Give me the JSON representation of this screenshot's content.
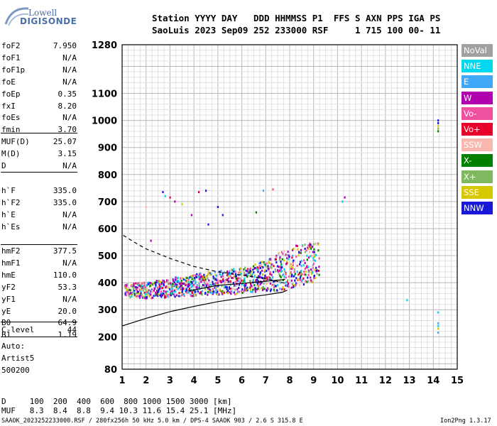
{
  "logo": {
    "line1": "Lowell",
    "line2": "DIGISONDE"
  },
  "header": {
    "line1": "Station YYYY DAY   DDD HHMMSS P1  FFS S AXN PPS IGA PS",
    "line2": "SaoLuis 2023 Sep09 252 233000 RSF     1 715 100 00- 11"
  },
  "params": {
    "g1": [
      [
        "foF2",
        "7.950"
      ],
      [
        "foF1",
        "N/A"
      ],
      [
        "foF1p",
        "N/A"
      ],
      [
        "foE",
        "N/A"
      ],
      [
        "foEp",
        "0.35"
      ],
      [
        "fxI",
        "8.20"
      ],
      [
        "foEs",
        "N/A"
      ],
      [
        "fmin",
        "3.70"
      ]
    ],
    "g2": [
      [
        "MUF(D)",
        "25.07"
      ],
      [
        "M(D)",
        "3.15"
      ],
      [
        "D",
        "N/A"
      ]
    ],
    "g3": [
      [
        "h`F",
        "335.0"
      ],
      [
        "h`F2",
        "335.0"
      ],
      [
        "h`E",
        "N/A"
      ],
      [
        "h`Es",
        "N/A"
      ]
    ],
    "g4": [
      [
        "hmF2",
        "377.5"
      ],
      [
        "hmF1",
        "N/A"
      ],
      [
        "hmE",
        "110.0"
      ],
      [
        "yF2",
        "53.3"
      ],
      [
        "yF1",
        "N/A"
      ],
      [
        "yE",
        "20.0"
      ],
      [
        "B0",
        "64.9"
      ],
      [
        "B1",
        "1.19"
      ]
    ],
    "g5": [
      [
        "C-level",
        "44"
      ]
    ]
  },
  "info": {
    "auto": "Auto:",
    "artist": "Artist5",
    "code": "500200"
  },
  "legend": [
    {
      "label": "NoVal",
      "color": "#a0a0a0"
    },
    {
      "label": "NNE",
      "color": "#00d8f0"
    },
    {
      "label": "E",
      "color": "#40a8f8"
    },
    {
      "label": "W",
      "color": "#b000b0"
    },
    {
      "label": "Vo-",
      "color": "#f050a0"
    },
    {
      "label": "Vo+",
      "color": "#e8002a"
    },
    {
      "label": "SSW",
      "color": "#f8b8b0"
    },
    {
      "label": "X-",
      "color": "#008000"
    },
    {
      "label": "X+",
      "color": "#80b860"
    },
    {
      "label": "SSE",
      "color": "#d8c800"
    },
    {
      "label": "NNW",
      "color": "#1818d8"
    }
  ],
  "footer": {
    "row1": "D     100  200  400  600  800 1000 1500 3000 [km]",
    "row2": "MUF   8.3  8.4  8.8  9.4 10.3 11.6 15.4 25.1 [MHz]",
    "file": "SAAOK_2023252233000.RSF / 280fx256h 50 kHz 5.0 km / DPS-4 SAAOK 903 / 2.6 S 315.8 E",
    "version": "Ion2Png 1.3.17"
  },
  "chart_data": {
    "type": "scatter",
    "title": "",
    "xlabel": "",
    "ylabel": "",
    "xlim": [
      1,
      15
    ],
    "ylim": [
      80,
      1280
    ],
    "x_ticks": [
      "1",
      "2",
      "3",
      "4",
      "5",
      "6",
      "7",
      "8",
      "9",
      "10",
      "11",
      "12",
      "13",
      "14",
      "15"
    ],
    "y_ticks": [
      {
        "v": 80,
        "label": "80"
      },
      {
        "v": 200,
        "label": "200"
      },
      {
        "v": 300,
        "label": "300"
      },
      {
        "v": 400,
        "label": "400"
      },
      {
        "v": 500,
        "label": "500"
      },
      {
        "v": 600,
        "label": "600"
      },
      {
        "v": 700,
        "label": "700"
      },
      {
        "v": 800,
        "label": "800"
      },
      {
        "v": 900,
        "label": "900"
      },
      {
        "v": 1000,
        "label": "1000"
      },
      {
        "v": 1100,
        "label": "1100"
      },
      {
        "v": 1280,
        "label": "1280"
      }
    ],
    "grid": true,
    "series": [
      {
        "name": "echo_band",
        "kind": "band",
        "points": [
          [
            1.1,
            375
          ],
          [
            2,
            375
          ],
          [
            3,
            385
          ],
          [
            4,
            395
          ],
          [
            5,
            405
          ],
          [
            6,
            410
          ],
          [
            7,
            430
          ],
          [
            7.9,
            455
          ],
          [
            8.5,
            470
          ],
          [
            9.2,
            480
          ]
        ],
        "spread": [
          [
            1.1,
            25
          ],
          [
            3,
            35
          ],
          [
            5,
            45
          ],
          [
            6.5,
            50
          ],
          [
            7.5,
            70
          ],
          [
            8.5,
            80
          ],
          [
            9.2,
            70
          ]
        ]
      },
      {
        "name": "sparse_echoes_high",
        "kind": "scatter",
        "points": [
          [
            2.7,
            735
          ],
          [
            2.8,
            720
          ],
          [
            3.0,
            715
          ],
          [
            3.2,
            700
          ],
          [
            3.5,
            690
          ],
          [
            4.2,
            735
          ],
          [
            4.5,
            740
          ],
          [
            5.0,
            680
          ],
          [
            5.2,
            650
          ],
          [
            6.6,
            660
          ],
          [
            6.9,
            740
          ],
          [
            7.3,
            745
          ],
          [
            10.3,
            715
          ],
          [
            10.2,
            700
          ],
          [
            2.0,
            680
          ],
          [
            3.9,
            650
          ],
          [
            4.6,
            615
          ],
          [
            2.2,
            555
          ]
        ]
      },
      {
        "name": "sparse_echoes_x14",
        "kind": "scatter",
        "points": [
          [
            14.2,
            1000
          ],
          [
            14.2,
            990
          ],
          [
            14.2,
            980
          ],
          [
            14.2,
            970
          ],
          [
            14.2,
            960
          ],
          [
            14.2,
            290
          ],
          [
            14.2,
            250
          ],
          [
            14.2,
            240
          ],
          [
            14.2,
            230
          ],
          [
            14.2,
            215
          ],
          [
            12.9,
            335
          ]
        ]
      },
      {
        "name": "virtual_height_trace",
        "kind": "line",
        "dashed": false,
        "points": [
          [
            1,
            240
          ],
          [
            2,
            268
          ],
          [
            3,
            293
          ],
          [
            4,
            312
          ],
          [
            5,
            330
          ],
          [
            6,
            343
          ],
          [
            7,
            355
          ],
          [
            7.7,
            365
          ],
          [
            7.9,
            372
          ]
        ]
      },
      {
        "name": "profile_upper",
        "kind": "line",
        "dashed": true,
        "points": [
          [
            1.05,
            575
          ],
          [
            1.5,
            550
          ],
          [
            2,
            525
          ],
          [
            3,
            490
          ],
          [
            4,
            460
          ],
          [
            5,
            440
          ],
          [
            6,
            428
          ],
          [
            7,
            415
          ],
          [
            7.8,
            398
          ]
        ]
      },
      {
        "name": "profile_lower",
        "kind": "line",
        "dashed": false,
        "points": [
          [
            3.8,
            370
          ],
          [
            5,
            390
          ],
          [
            6,
            397
          ],
          [
            7,
            405
          ],
          [
            7.8,
            412
          ]
        ]
      }
    ]
  }
}
